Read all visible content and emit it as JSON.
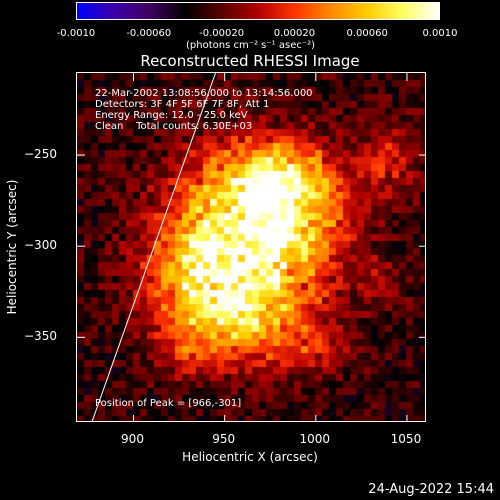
{
  "colorbar": {
    "ticks": [
      "-0.0010",
      "-0.00060",
      "-0.00020",
      "0.00020",
      "0.00060",
      "0.0010"
    ],
    "units_text": "(photons cm⁻² s⁻¹ asec⁻²)",
    "range": [
      -0.001,
      0.001
    ],
    "palette": [
      "#0000ff",
      "#3a00aa",
      "#400060",
      "#000000",
      "#5a0000",
      "#b00000",
      "#ff3300",
      "#ff8800",
      "#ffcc00",
      "#ffff60",
      "#ffffff"
    ]
  },
  "info": {
    "line1": "22-Mar-2002 13:08:56.000 to 13:14:56.000",
    "line2": "Detectors: 3F 4F 5F 6F 7F 8F, Att 1",
    "line3": "Energy Range: 12.0 - 25.0 keV",
    "line4": "Clean    Total counts: 6.30E+03",
    "peak": "Position of Peak = [966,-301]"
  },
  "timestamp": "24-Aug-2022 15:44",
  "chart_data": {
    "type": "heatmap",
    "title": "Reconstructed RHESSI Image",
    "xlabel": "Heliocentric X (arcsec)",
    "ylabel": "Heliocentric Y (arcsec)",
    "xlim": [
      869,
      1061
    ],
    "ylim": [
      -397,
      -205
    ],
    "x_ticks": [
      900,
      950,
      1000,
      1050
    ],
    "y_ticks": [
      -250,
      -300,
      -350
    ],
    "x_tick_labels": [
      "900",
      "950",
      "1000",
      "1050"
    ],
    "y_tick_labels": [
      "−250",
      "−300",
      "−350"
    ],
    "peak_position": [
      966,
      -301
    ],
    "limb_line": [
      [
        877,
        -397
      ],
      [
        945,
        -205
      ]
    ],
    "blobs": [
      {
        "x": 962,
        "y": -299,
        "sx": 30,
        "sy": 34,
        "amp": 0.0011
      },
      {
        "x": 935,
        "y": -315,
        "sx": 20,
        "sy": 22,
        "amp": 0.0005
      },
      {
        "x": 990,
        "y": -278,
        "sx": 22,
        "sy": 22,
        "amp": 0.0005
      },
      {
        "x": 955,
        "y": -345,
        "sx": 24,
        "sy": 14,
        "amp": 0.00045
      },
      {
        "x": 975,
        "y": -262,
        "sx": 20,
        "sy": 12,
        "amp": 0.0005
      },
      {
        "x": 1000,
        "y": -355,
        "sx": 14,
        "sy": 10,
        "amp": 0.0003
      },
      {
        "x": 1040,
        "y": -252,
        "sx": 12,
        "sy": 16,
        "amp": 0.00035
      },
      {
        "x": 925,
        "y": -360,
        "sx": 10,
        "sy": 10,
        "amp": 0.0002
      },
      {
        "x": 1035,
        "y": -320,
        "sx": 10,
        "sy": 10,
        "amp": 0.0002
      }
    ]
  }
}
